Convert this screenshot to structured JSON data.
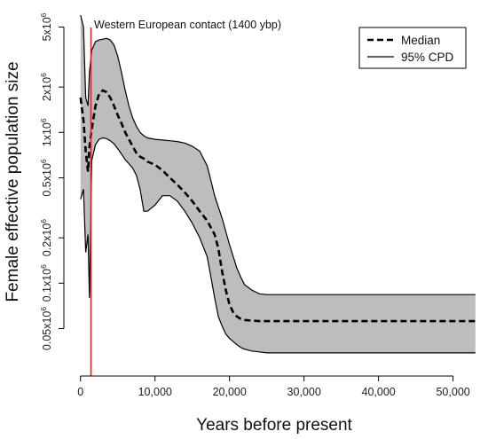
{
  "chart_data": {
    "type": "area",
    "title": "",
    "xlabel": "Years before present",
    "ylabel": "Female effective population size",
    "yscale": "log",
    "xlim": [
      -1400,
      53500
    ],
    "ylim": [
      27000,
      6000000
    ],
    "grid": false,
    "x_ticks": [
      {
        "value": 0,
        "label": "0"
      },
      {
        "value": 10000,
        "label": "10,000"
      },
      {
        "value": 20000,
        "label": "20,000"
      },
      {
        "value": 30000,
        "label": "30,000"
      },
      {
        "value": 40000,
        "label": "40,000"
      },
      {
        "value": 50000,
        "label": "50,000"
      }
    ],
    "y_ticks": [
      {
        "value": 50000,
        "base": "0.05x10",
        "exp": "6"
      },
      {
        "value": 100000,
        "base": "0.1x10",
        "exp": "6"
      },
      {
        "value": 200000,
        "base": "0.2x10",
        "exp": "6"
      },
      {
        "value": 500000,
        "base": "0.5x10",
        "exp": "6"
      },
      {
        "value": 1000000,
        "base": "1x10",
        "exp": "6"
      },
      {
        "value": 2000000,
        "base": "2x10",
        "exp": "6"
      },
      {
        "value": 5000000,
        "base": "5x10",
        "exp": "6"
      }
    ],
    "legend": {
      "position": "top-right",
      "items": [
        {
          "label": "Median",
          "style": "dashed"
        },
        {
          "label": "95% CPD",
          "style": "solid"
        }
      ]
    },
    "annotation": {
      "label": "Western European contact (1400 ybp)",
      "x": 1400,
      "color": "#d62728"
    },
    "series": [
      {
        "name": "Median",
        "x": [
          0,
          400,
          700,
          1000,
          1200,
          1500,
          2000,
          2500,
          3000,
          3500,
          4000,
          4500,
          5000,
          5500,
          6000,
          6500,
          7000,
          7500,
          8000,
          8500,
          9000,
          10000,
          11000,
          12000,
          13000,
          14000,
          15000,
          16000,
          17000,
          18000,
          18500,
          19000,
          19500,
          20000,
          20500,
          21000,
          21500,
          22000,
          23000,
          24000,
          25000,
          30000,
          40000,
          50000,
          53000
        ],
        "y": [
          1700000,
          1200000,
          750000,
          550000,
          800000,
          1050000,
          1500000,
          1800000,
          1900000,
          1850000,
          1700000,
          1500000,
          1300000,
          1150000,
          1000000,
          900000,
          810000,
          730000,
          690000,
          670000,
          640000,
          610000,
          560000,
          500000,
          450000,
          400000,
          350000,
          300000,
          260000,
          210000,
          170000,
          120000,
          90000,
          72000,
          64000,
          60000,
          58000,
          57000,
          56500,
          56000,
          56000,
          56000,
          56000,
          56000,
          56000
        ]
      },
      {
        "name": "95% CPD",
        "x": [
          0,
          400,
          700,
          1000,
          1200,
          1500,
          2000,
          2500,
          3000,
          3500,
          4000,
          4500,
          5000,
          5500,
          6000,
          6500,
          7000,
          7500,
          8000,
          8500,
          9000,
          10000,
          11000,
          12000,
          13000,
          14000,
          15000,
          16000,
          17000,
          17500,
          18000,
          18500,
          19000,
          19500,
          20000,
          20500,
          21000,
          21500,
          22000,
          23000,
          24000,
          25000,
          30000,
          40000,
          50000,
          53000
        ],
        "upper": [
          6000000,
          5000000,
          1700000,
          1500000,
          2500000,
          3500000,
          4000000,
          4100000,
          4150000,
          4200000,
          4100000,
          3800000,
          3200000,
          2500000,
          1900000,
          1500000,
          1250000,
          1100000,
          1000000,
          950000,
          920000,
          900000,
          890000,
          880000,
          870000,
          850000,
          810000,
          750000,
          600000,
          480000,
          380000,
          320000,
          270000,
          220000,
          180000,
          150000,
          125000,
          110000,
          98000,
          90000,
          85000,
          84000,
          84000,
          84000,
          84000,
          84000
        ],
        "lower": [
          360000,
          420000,
          160000,
          210000,
          80000,
          650000,
          830000,
          900000,
          920000,
          910000,
          880000,
          840000,
          780000,
          720000,
          660000,
          620000,
          580000,
          520000,
          420000,
          300000,
          300000,
          330000,
          380000,
          380000,
          350000,
          300000,
          250000,
          200000,
          150000,
          110000,
          80000,
          60000,
          52000,
          46000,
          43000,
          41000,
          39000,
          37500,
          36500,
          35500,
          35000,
          34500,
          34500,
          34500,
          34500,
          34500
        ]
      }
    ]
  }
}
